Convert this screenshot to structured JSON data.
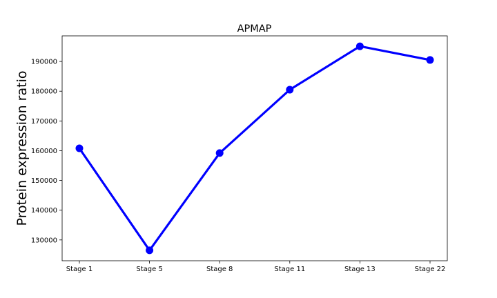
{
  "chart_data": {
    "type": "line",
    "title": "APMAP",
    "xlabel": "",
    "ylabel": "Protein expression ratio",
    "categories": [
      "Stage 1",
      "Stage 5",
      "Stage 8",
      "Stage 11",
      "Stage 13",
      "Stage 22"
    ],
    "series": [
      {
        "values": [
          160800,
          126500,
          159200,
          180500,
          195100,
          190500
        ],
        "color": "#0000ff"
      }
    ],
    "ylim": [
      123000,
      198600
    ],
    "yticks": [
      130000,
      140000,
      150000,
      160000,
      170000,
      180000,
      190000
    ],
    "grid": false,
    "legend": "none"
  }
}
